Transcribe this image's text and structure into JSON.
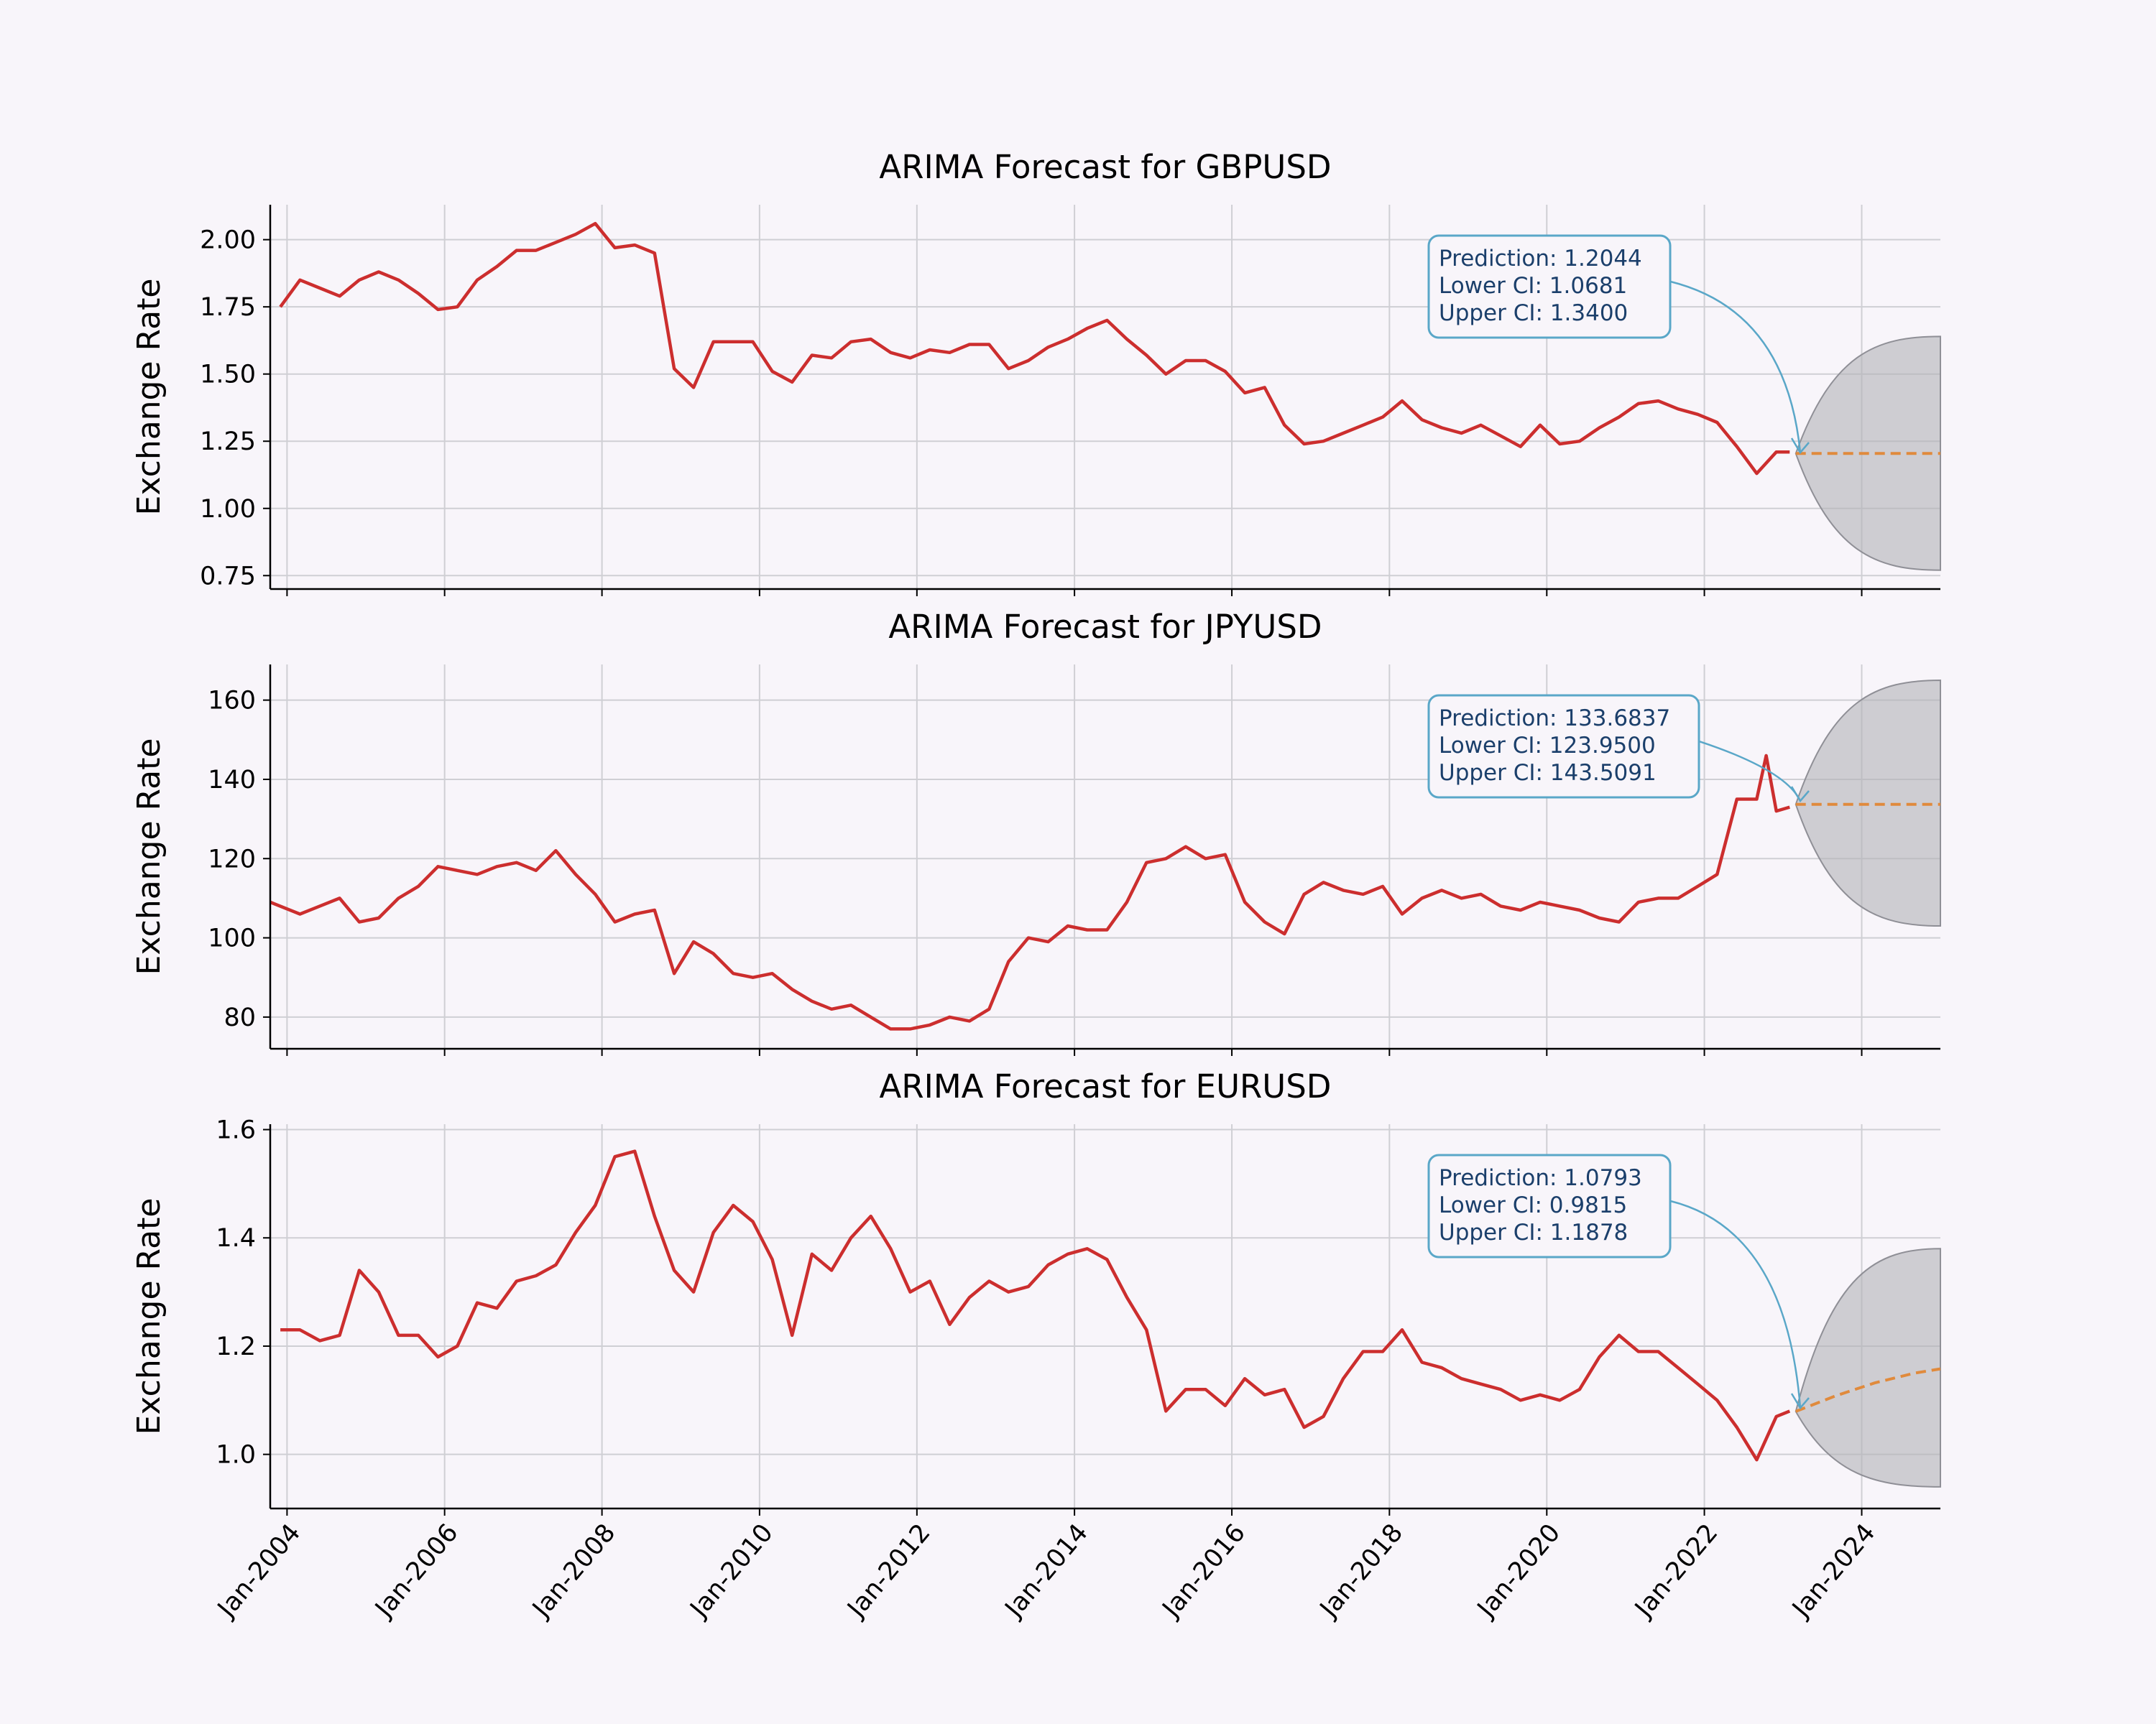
{
  "figure": {
    "background": "#f8f5fa"
  },
  "colors": {
    "history": "#cc2e2e",
    "forecast": "#e08a3c",
    "ci_fill": "#b3b3b7",
    "annotation_border": "#5aa7c8",
    "annotation_text": "#1b3f6b",
    "grid": "#cfcfd4"
  },
  "x_ticks": [
    "Jan-2004",
    "Jan-2006",
    "Jan-2008",
    "Jan-2010",
    "Jan-2012",
    "Jan-2014",
    "Jan-2016",
    "Jan-2018",
    "Jan-2020",
    "Jan-2022",
    "Jan-2024"
  ],
  "chart_data": [
    {
      "type": "line",
      "title": "ARIMA Forecast for GBPUSD",
      "ylabel": "Exchange Rate",
      "xlim": [
        "2003-10-15",
        "2024-12-31"
      ],
      "ylim": [
        0.7,
        2.13
      ],
      "yticks": [
        "0.75",
        "1.00",
        "1.25",
        "1.50",
        "1.75",
        "2.00"
      ],
      "grid": true,
      "history": {
        "x": [
          "2003-12-01",
          "2004-03-01",
          "2004-06-01",
          "2004-09-01",
          "2004-12-01",
          "2005-03-01",
          "2005-06-01",
          "2005-09-01",
          "2005-12-01",
          "2006-03-01",
          "2006-06-01",
          "2006-09-01",
          "2006-12-01",
          "2007-03-01",
          "2007-06-01",
          "2007-09-01",
          "2007-12-01",
          "2008-03-01",
          "2008-06-01",
          "2008-09-01",
          "2008-12-01",
          "2009-03-01",
          "2009-06-01",
          "2009-09-01",
          "2009-12-01",
          "2010-03-01",
          "2010-06-01",
          "2010-09-01",
          "2010-12-01",
          "2011-03-01",
          "2011-06-01",
          "2011-09-01",
          "2011-12-01",
          "2012-03-01",
          "2012-06-01",
          "2012-09-01",
          "2012-12-01",
          "2013-03-01",
          "2013-06-01",
          "2013-09-01",
          "2013-12-01",
          "2014-03-01",
          "2014-06-01",
          "2014-09-01",
          "2014-12-01",
          "2015-03-01",
          "2015-06-01",
          "2015-09-01",
          "2015-12-01",
          "2016-03-01",
          "2016-06-01",
          "2016-09-01",
          "2016-12-01",
          "2017-03-01",
          "2017-06-01",
          "2017-09-01",
          "2017-12-01",
          "2018-03-01",
          "2018-06-01",
          "2018-09-01",
          "2018-12-01",
          "2019-03-01",
          "2019-06-01",
          "2019-09-01",
          "2019-12-01",
          "2020-03-01",
          "2020-06-01",
          "2020-09-01",
          "2020-12-01",
          "2021-03-01",
          "2021-06-01",
          "2021-09-01",
          "2021-12-01",
          "2022-03-01",
          "2022-06-01",
          "2022-09-01",
          "2022-12-01",
          "2023-02-01"
        ],
        "y": [
          1.75,
          1.85,
          1.82,
          1.79,
          1.85,
          1.88,
          1.85,
          1.8,
          1.74,
          1.75,
          1.85,
          1.9,
          1.96,
          1.96,
          1.99,
          2.02,
          2.06,
          1.97,
          1.98,
          1.95,
          1.52,
          1.45,
          1.62,
          1.62,
          1.62,
          1.51,
          1.47,
          1.57,
          1.56,
          1.62,
          1.63,
          1.58,
          1.56,
          1.59,
          1.58,
          1.61,
          1.61,
          1.52,
          1.55,
          1.6,
          1.63,
          1.67,
          1.7,
          1.63,
          1.57,
          1.5,
          1.55,
          1.55,
          1.51,
          1.43,
          1.45,
          1.31,
          1.24,
          1.25,
          1.28,
          1.31,
          1.34,
          1.4,
          1.33,
          1.3,
          1.28,
          1.31,
          1.27,
          1.23,
          1.31,
          1.24,
          1.25,
          1.3,
          1.34,
          1.39,
          1.4,
          1.37,
          1.35,
          1.32,
          1.23,
          1.13,
          1.21,
          1.21
        ]
      },
      "forecast": {
        "x": [
          "2023-03-01",
          "2024-12-31"
        ],
        "y": [
          1.2044,
          1.2044
        ]
      },
      "ci": {
        "x_start": "2023-03-01",
        "x_end": "2024-12-31",
        "lower_end": 0.77,
        "upper_end": 1.64
      },
      "annotation": {
        "prediction": "Prediction: 1.2044",
        "lower": "Lower CI: 1.0681",
        "upper": "Upper CI: 1.3400"
      }
    },
    {
      "type": "line",
      "title": "ARIMA Forecast for JPYUSD",
      "ylabel": "Exchange Rate",
      "xlim": [
        "2003-10-15",
        "2024-12-31"
      ],
      "ylim": [
        72,
        169
      ],
      "yticks": [
        "80",
        "100",
        "120",
        "140",
        "160"
      ],
      "grid": true,
      "history": {
        "x": [
          "2003-10-15",
          "2004-03-01",
          "2004-06-01",
          "2004-09-01",
          "2004-12-01",
          "2005-03-01",
          "2005-06-01",
          "2005-09-01",
          "2005-12-01",
          "2006-03-01",
          "2006-06-01",
          "2006-09-01",
          "2006-12-01",
          "2007-03-01",
          "2007-06-01",
          "2007-09-01",
          "2007-12-01",
          "2008-03-01",
          "2008-06-01",
          "2008-09-01",
          "2008-12-01",
          "2009-03-01",
          "2009-06-01",
          "2009-09-01",
          "2009-12-01",
          "2010-03-01",
          "2010-06-01",
          "2010-09-01",
          "2010-12-01",
          "2011-03-01",
          "2011-06-01",
          "2011-09-01",
          "2011-12-01",
          "2012-03-01",
          "2012-06-01",
          "2012-09-01",
          "2012-12-01",
          "2013-03-01",
          "2013-06-01",
          "2013-09-01",
          "2013-12-01",
          "2014-03-01",
          "2014-06-01",
          "2014-09-01",
          "2014-12-01",
          "2015-03-01",
          "2015-06-01",
          "2015-09-01",
          "2015-12-01",
          "2016-03-01",
          "2016-06-01",
          "2016-09-01",
          "2016-12-01",
          "2017-03-01",
          "2017-06-01",
          "2017-09-01",
          "2017-12-01",
          "2018-03-01",
          "2018-06-01",
          "2018-09-01",
          "2018-12-01",
          "2019-03-01",
          "2019-06-01",
          "2019-09-01",
          "2019-12-01",
          "2020-03-01",
          "2020-06-01",
          "2020-09-01",
          "2020-12-01",
          "2021-03-01",
          "2021-06-01",
          "2021-09-01",
          "2021-12-01",
          "2022-03-01",
          "2022-06-01",
          "2022-09-01",
          "2022-10-15",
          "2022-12-01",
          "2023-02-01"
        ],
        "y": [
          109,
          106,
          108,
          110,
          104,
          105,
          110,
          113,
          118,
          117,
          116,
          118,
          119,
          117,
          122,
          116,
          111,
          104,
          106,
          107,
          91,
          99,
          96,
          91,
          90,
          91,
          87,
          84,
          82,
          83,
          80,
          77,
          77,
          78,
          80,
          79,
          82,
          94,
          100,
          99,
          103,
          102,
          102,
          109,
          119,
          120,
          123,
          120,
          121,
          109,
          104,
          101,
          111,
          114,
          112,
          111,
          113,
          106,
          110,
          112,
          110,
          111,
          108,
          107,
          109,
          108,
          107,
          105,
          104,
          109,
          110,
          110,
          113,
          116,
          135,
          135,
          146,
          132,
          133
        ]
      },
      "forecast": {
        "x": [
          "2023-03-01",
          "2024-12-31"
        ],
        "y": [
          133.6837,
          133.6837
        ]
      },
      "ci": {
        "x_start": "2023-03-01",
        "x_end": "2024-12-31",
        "lower_end": 103,
        "upper_end": 165
      },
      "annotation": {
        "prediction": "Prediction: 133.6837",
        "lower": "Lower CI: 123.9500",
        "upper": "Upper CI: 143.5091"
      }
    },
    {
      "type": "line",
      "title": "ARIMA Forecast for EURUSD",
      "ylabel": "Exchange Rate",
      "xlim": [
        "2003-10-15",
        "2024-12-31"
      ],
      "ylim": [
        0.9,
        1.61
      ],
      "yticks": [
        "1.0",
        "1.2",
        "1.4",
        "1.6"
      ],
      "grid": true,
      "history": {
        "x": [
          "2003-12-01",
          "2004-03-01",
          "2004-06-01",
          "2004-09-01",
          "2004-12-01",
          "2005-03-01",
          "2005-06-01",
          "2005-09-01",
          "2005-12-01",
          "2006-03-01",
          "2006-06-01",
          "2006-09-01",
          "2006-12-01",
          "2007-03-01",
          "2007-06-01",
          "2007-09-01",
          "2007-12-01",
          "2008-03-01",
          "2008-06-01",
          "2008-09-01",
          "2008-12-01",
          "2009-03-01",
          "2009-06-01",
          "2009-09-01",
          "2009-12-01",
          "2010-03-01",
          "2010-06-01",
          "2010-09-01",
          "2010-12-01",
          "2011-03-01",
          "2011-06-01",
          "2011-09-01",
          "2011-12-01",
          "2012-03-01",
          "2012-06-01",
          "2012-09-01",
          "2012-12-01",
          "2013-03-01",
          "2013-06-01",
          "2013-09-01",
          "2013-12-01",
          "2014-03-01",
          "2014-06-01",
          "2014-09-01",
          "2014-12-01",
          "2015-03-01",
          "2015-06-01",
          "2015-09-01",
          "2015-12-01",
          "2016-03-01",
          "2016-06-01",
          "2016-09-01",
          "2016-12-01",
          "2017-03-01",
          "2017-06-01",
          "2017-09-01",
          "2017-12-01",
          "2018-03-01",
          "2018-06-01",
          "2018-09-01",
          "2018-12-01",
          "2019-03-01",
          "2019-06-01",
          "2019-09-01",
          "2019-12-01",
          "2020-03-01",
          "2020-06-01",
          "2020-09-01",
          "2020-12-01",
          "2021-03-01",
          "2021-06-01",
          "2021-09-01",
          "2021-12-01",
          "2022-03-01",
          "2022-06-01",
          "2022-09-01",
          "2022-12-01",
          "2023-02-01"
        ],
        "y": [
          1.23,
          1.23,
          1.21,
          1.22,
          1.34,
          1.3,
          1.22,
          1.22,
          1.18,
          1.2,
          1.28,
          1.27,
          1.32,
          1.33,
          1.35,
          1.41,
          1.46,
          1.55,
          1.56,
          1.44,
          1.34,
          1.3,
          1.41,
          1.46,
          1.43,
          1.36,
          1.22,
          1.37,
          1.34,
          1.4,
          1.44,
          1.38,
          1.3,
          1.32,
          1.24,
          1.29,
          1.32,
          1.3,
          1.31,
          1.35,
          1.37,
          1.38,
          1.36,
          1.29,
          1.23,
          1.08,
          1.12,
          1.12,
          1.09,
          1.14,
          1.11,
          1.12,
          1.05,
          1.07,
          1.14,
          1.19,
          1.19,
          1.23,
          1.17,
          1.16,
          1.14,
          1.13,
          1.12,
          1.1,
          1.11,
          1.1,
          1.12,
          1.18,
          1.22,
          1.19,
          1.19,
          1.16,
          1.13,
          1.1,
          1.05,
          0.99,
          1.07,
          1.08
        ]
      },
      "forecast": {
        "x": [
          "2023-03-01",
          "2023-09-01",
          "2024-03-01",
          "2024-09-01",
          "2024-12-31"
        ],
        "y": [
          1.0793,
          1.108,
          1.132,
          1.15,
          1.158
        ]
      },
      "ci": {
        "x_start": "2023-03-01",
        "x_end": "2024-12-31",
        "lower_end": 0.94,
        "upper_end": 1.38
      },
      "annotation": {
        "prediction": "Prediction: 1.0793",
        "lower": "Lower CI: 0.9815",
        "upper": "Upper CI: 1.1878"
      }
    }
  ]
}
